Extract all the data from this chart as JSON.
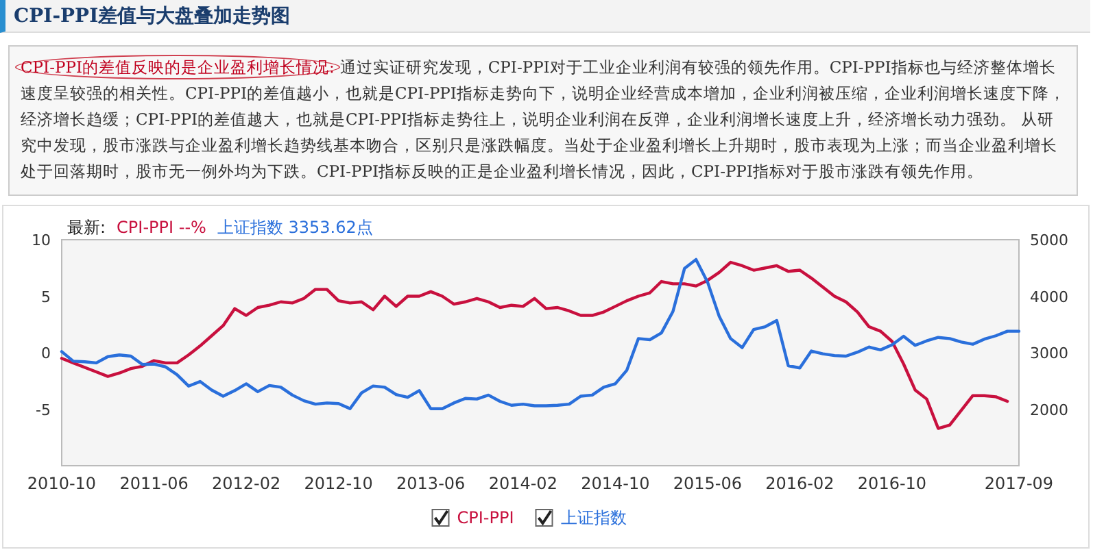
{
  "chart_data": {
    "type": "line",
    "title": "CPI-PPI差值与大盘叠加走势图",
    "annotations": [
      "CPI-PPI的差值反映的是企业盈利增长情况:",
      "通过实证研究发现，CPI-PPI对于工业企业利润有较强的领先作用。CPI-PPI指标也与经济整体增长速度呈较强的相关性。CPI-PPI的差值越小，也就是CPI-PPI指标走势向下，说明企业经营成本增加，企业利润被压缩，企业利润增长速度下降，经济增长趋缓；CPI-PPI的差值越大，也就是CPI-PPI指标走势往上，说明企业利润在反弹，企业利润增长速度上升，经济增长动力强劲。 从研究中发现，股市涨跌与企业盈利增长趋势线基本吻合，区别只是涨跌幅度。当处于企业盈利增长上升期时，股市表现为上涨；而当企业盈利增长处于回落期时，股市无一例外均为下跌。CPI-PPI指标反映的正是企业盈利增长情况，因此，CPI-PPI指标对于股市涨跌有领先作用。",
      "最新:",
      "CPI-PPI  --%",
      "上证指数  3353.62点"
    ],
    "x": [
      "2010-10",
      "2010-11",
      "2010-12",
      "2011-01",
      "2011-02",
      "2011-03",
      "2011-04",
      "2011-05",
      "2011-06",
      "2011-07",
      "2011-08",
      "2011-09",
      "2011-10",
      "2011-11",
      "2011-12",
      "2012-01",
      "2012-02",
      "2012-03",
      "2012-04",
      "2012-05",
      "2012-06",
      "2012-07",
      "2012-08",
      "2012-09",
      "2012-10",
      "2012-11",
      "2012-12",
      "2013-01",
      "2013-02",
      "2013-03",
      "2013-04",
      "2013-05",
      "2013-06",
      "2013-07",
      "2013-08",
      "2013-09",
      "2013-10",
      "2013-11",
      "2013-12",
      "2014-01",
      "2014-02",
      "2014-03",
      "2014-04",
      "2014-05",
      "2014-06",
      "2014-07",
      "2014-08",
      "2014-09",
      "2014-10",
      "2014-11",
      "2014-12",
      "2015-01",
      "2015-02",
      "2015-03",
      "2015-04",
      "2015-05",
      "2015-06",
      "2015-07",
      "2015-08",
      "2015-09",
      "2015-10",
      "2015-11",
      "2015-12",
      "2016-01",
      "2016-02",
      "2016-03",
      "2016-04",
      "2016-05",
      "2016-06",
      "2016-07",
      "2016-08",
      "2016-09",
      "2016-10",
      "2016-11",
      "2016-12",
      "2017-01",
      "2017-02",
      "2017-03",
      "2017-04",
      "2017-05",
      "2017-06",
      "2017-07",
      "2017-08",
      "2017-09"
    ],
    "series": [
      {
        "name": "CPI-PPI",
        "color": "#c8103e",
        "values": [
          -0.5,
          -0.9,
          -1.3,
          -1.7,
          -2.1,
          -1.8,
          -1.4,
          -1.2,
          -0.7,
          -0.9,
          -0.9,
          -0.2,
          0.6,
          1.5,
          2.4,
          3.9,
          3.3,
          4.0,
          4.2,
          4.5,
          4.4,
          4.8,
          5.6,
          5.6,
          4.6,
          4.4,
          4.5,
          3.8,
          5.0,
          4.1,
          5.0,
          5.0,
          5.4,
          5.0,
          4.3,
          4.5,
          4.8,
          4.5,
          4.0,
          4.2,
          4.1,
          4.8,
          3.9,
          4.0,
          3.7,
          3.3,
          3.3,
          3.6,
          4.1,
          4.6,
          5.0,
          5.3,
          6.3,
          6.1,
          6.1,
          5.9,
          6.4,
          7.1,
          8.0,
          7.7,
          7.3,
          7.5,
          7.7,
          7.2,
          7.3,
          6.6,
          5.8,
          5.0,
          4.5,
          3.6,
          2.3,
          1.9,
          1.0,
          -1.0,
          -3.3,
          -4.1,
          -6.7,
          -6.4,
          -5.1,
          -3.8,
          -3.8,
          -3.9,
          -4.3,
          null
        ]
      },
      {
        "name": "上证指数",
        "color": "#2a6fdb",
        "axis": "y2",
        "values": [
          3020,
          2850,
          2840,
          2820,
          2930,
          2960,
          2940,
          2790,
          2800,
          2750,
          2610,
          2410,
          2490,
          2340,
          2230,
          2330,
          2450,
          2310,
          2420,
          2390,
          2250,
          2150,
          2090,
          2110,
          2100,
          2010,
          2290,
          2410,
          2390,
          2260,
          2210,
          2330,
          2010,
          2010,
          2110,
          2190,
          2180,
          2250,
          2140,
          2070,
          2090,
          2060,
          2060,
          2070,
          2090,
          2230,
          2250,
          2390,
          2450,
          2690,
          3250,
          3230,
          3350,
          3730,
          4490,
          4650,
          4250,
          3650,
          3250,
          3090,
          3410,
          3460,
          3570,
          2770,
          2730,
          3030,
          2980,
          2950,
          2940,
          3010,
          3100,
          3050,
          3140,
          3290,
          3130,
          3210,
          3270,
          3250,
          3190,
          3150,
          3240,
          3300,
          3380,
          3380
        ]
      }
    ],
    "xlim": [
      "2010-10",
      "2017-09"
    ],
    "xticks": [
      "2010-10",
      "2011-06",
      "2012-02",
      "2012-10",
      "2013-06",
      "2014-02",
      "2014-10",
      "2015-06",
      "2016-02",
      "2016-10",
      "2017-09"
    ],
    "ylim": [
      -10,
      10
    ],
    "yticks": [
      10,
      5,
      0,
      -5
    ],
    "y2lim": [
      1000,
      5000
    ],
    "y2ticks": [
      5000,
      4000,
      3000,
      2000
    ],
    "legend": "bottom",
    "grid": false,
    "marker": "none",
    "line_style": "solid"
  }
}
